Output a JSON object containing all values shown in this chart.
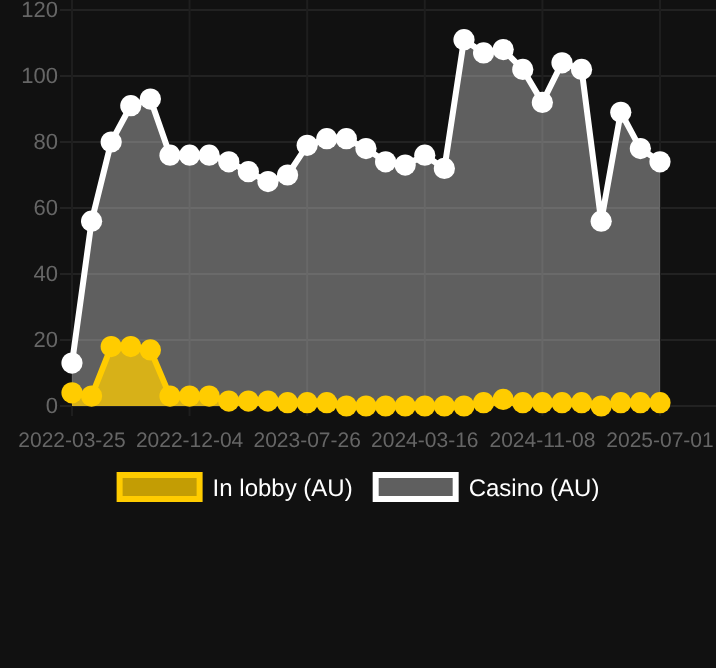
{
  "chart_data": {
    "type": "area",
    "categories": [
      "2022-03-25",
      null,
      null,
      null,
      null,
      null,
      "2022-12-04",
      null,
      null,
      null,
      null,
      null,
      "2023-07-26",
      null,
      null,
      null,
      null,
      null,
      "2024-03-16",
      null,
      null,
      null,
      null,
      null,
      "2024-11-08",
      null,
      null,
      null,
      null,
      null,
      "2025-07-01"
    ],
    "series": [
      {
        "name": "In lobby (AU)",
        "color": "#ffcc00",
        "values": [
          4,
          3,
          18,
          18,
          17,
          3,
          3,
          3,
          1.5,
          1.5,
          1.5,
          1,
          1,
          1,
          0,
          0,
          0,
          0,
          0,
          0,
          0,
          1,
          2,
          1,
          1,
          1,
          1,
          0,
          1,
          1,
          1
        ]
      },
      {
        "name": "Casino (AU)",
        "color": "#ffffff",
        "values": [
          13,
          56,
          80,
          91,
          93,
          76,
          76,
          76,
          74,
          71,
          68,
          70,
          79,
          81,
          81,
          78,
          74,
          73,
          76,
          72,
          111,
          107,
          108,
          102,
          92,
          104,
          102,
          56,
          89,
          78,
          74
        ]
      }
    ],
    "ylim": [
      0,
      120
    ],
    "yticks": [
      0,
      20,
      40,
      60,
      80,
      100,
      120
    ],
    "grid": true,
    "legend": "bottom",
    "marker": "circle"
  }
}
